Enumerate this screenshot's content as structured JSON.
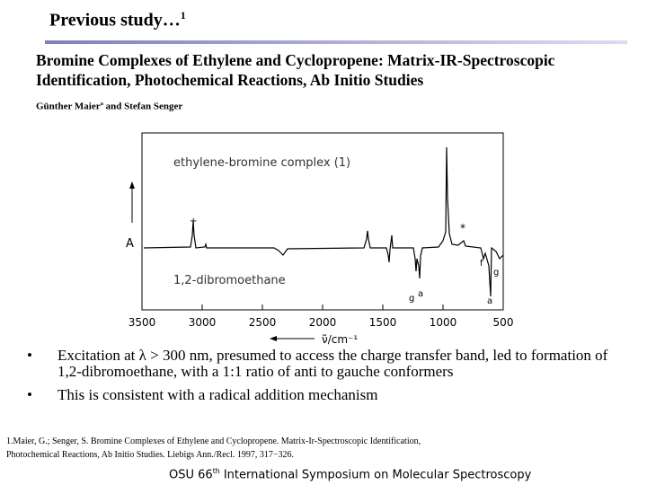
{
  "header": {
    "title": "Previous study…",
    "title_sup": "1"
  },
  "paper": {
    "title_lines": [
      "Bromine Complexes of Ethylene and Cyclopropene: Matrix-IR-Spectroscopic",
      "Identification, Photochemical Reactions, Ab Initio Studies"
    ],
    "author_1": "Günther Maier",
    "author_1_sup": "a",
    "author_rest": " and Stefan Senger"
  },
  "figure": {
    "xlim": [
      3500,
      500
    ],
    "xticks": [
      3500,
      3000,
      2500,
      2000,
      1500,
      1000,
      500
    ],
    "x_label": "ν̃/cm⁻¹",
    "y_label": "A",
    "trace_labels": [
      "ethylene-bromine complex (1)",
      "1,2-dibromoethane"
    ],
    "band_labels": [
      "+",
      "*",
      "f",
      "g",
      "g",
      "a",
      "a"
    ]
  },
  "bullets": [
    "Excitation at λ > 300 nm, presumed to access the charge transfer band, led to formation of 1,2-dibromoethane, with a  1:1 ratio of anti to gauche conformers",
    "This is consistent with a radical addition mechanism"
  ],
  "footnote": [
    "1.Maier, G.; Senger, S. Bromine Complexes of Ethylene and Cyclopropene. Matrix-Ir-Spectroscopic Identification,",
    "Photochemical Reactions, Ab Initio Studies. Liebigs Ann./Recl. 1997, 317−326."
  ],
  "footer": {
    "before": "OSU 66",
    "sup": "th",
    "after": " International Symposium on Molecular Spectroscopy"
  }
}
